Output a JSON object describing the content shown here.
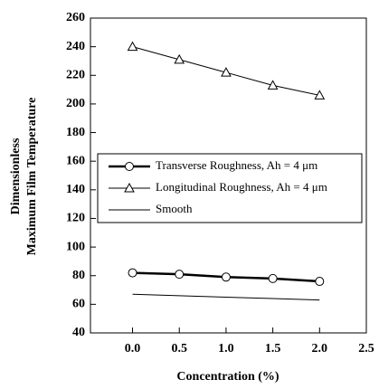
{
  "chart_data": {
    "type": "line",
    "xlabel": "Concentration (%)",
    "ylabel": [
      "Dimensionless",
      "Maximum Film Temperature"
    ],
    "series": [
      {
        "name": "Transverse Roughness, Ah = 4 μm",
        "color": "#000000",
        "marker": "circle",
        "x": [
          0,
          0.5,
          1,
          1.5,
          2
        ],
        "values": [
          82,
          81,
          79,
          78,
          76
        ]
      },
      {
        "name": "Longitudinal Roughness, Ah = 4 μm",
        "color": "#000000",
        "marker": "triangle",
        "x": [
          0,
          0.5,
          1,
          1.5,
          2
        ],
        "values": [
          240,
          231,
          222,
          213,
          206
        ]
      },
      {
        "name": "Smooth",
        "color": "#000000",
        "x": [
          0,
          0.5,
          1,
          1.5,
          2
        ],
        "values": [
          67,
          66,
          65,
          64,
          63
        ]
      }
    ],
    "xlim": [
      -0.45,
      2.5
    ],
    "xticks": [
      {
        "value": 0,
        "label": "0.0"
      },
      {
        "value": 0.5,
        "label": "0.5"
      },
      {
        "value": 1,
        "label": "1.0"
      },
      {
        "value": 1.5,
        "label": "1.5"
      },
      {
        "value": 2,
        "label": "2.0"
      },
      {
        "value": 2.5,
        "label": "2.5"
      }
    ],
    "ylim": [
      40,
      260
    ],
    "yticks": [
      40,
      60,
      80,
      100,
      120,
      140,
      160,
      180,
      200,
      220,
      240,
      260
    ]
  }
}
